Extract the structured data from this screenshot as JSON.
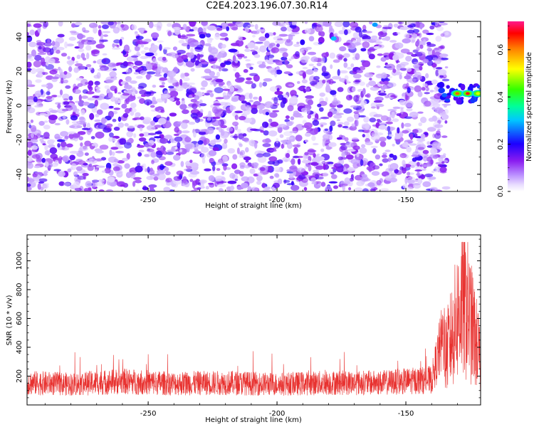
{
  "page_title": "C2E4.2023.196.07.30.R14",
  "chart_data": [
    {
      "type": "heatmap",
      "title": "C2E4.2023.196.07.30.R14",
      "xlabel": "Height of straight line (km)",
      "ylabel": "Frequency (Hz)",
      "xlim": [
        -297,
        -121
      ],
      "ylim": [
        -50,
        49
      ],
      "x_ticks": [
        -250,
        -200,
        -150
      ],
      "x_tick_labels": [
        "-250",
        "-200",
        "-150"
      ],
      "y_ticks": [
        -40,
        -20,
        0,
        20,
        40
      ],
      "y_tick_labels": [
        "-40",
        "-20",
        "0",
        "20",
        "40"
      ],
      "colorbar": {
        "label": "Normalized spectral amplitude",
        "range": [
          0,
          0.72
        ],
        "ticks": [
          0.0,
          0.2,
          0.4,
          0.6
        ],
        "tick_labels": [
          "0.0",
          "0.2",
          "0.4",
          "0.6"
        ],
        "colors": [
          "#ffffff",
          "#d7c2ff",
          "#8a1cf0",
          "#1c00ff",
          "#00e6ff",
          "#00ff40",
          "#ffff00",
          "#ff7f00",
          "#ff0000",
          "#ff1a8c"
        ]
      },
      "background_noise_level": 0.15,
      "features": [
        {
          "x": -130,
          "y": 7,
          "value": 0.62
        },
        {
          "x": -126,
          "y": 7,
          "value": 0.68
        },
        {
          "x": -122,
          "y": 7,
          "value": 0.5
        },
        {
          "x": -135,
          "y": 6,
          "value": 0.25
        },
        {
          "x": -178,
          "y": 39,
          "value": 0.3
        },
        {
          "x": -162,
          "y": 47,
          "value": 0.28
        }
      ]
    },
    {
      "type": "line",
      "xlabel": "Height of straight line (km)",
      "ylabel": "SNR (10 * v/v)",
      "xlim": [
        -297,
        -121
      ],
      "ylim": [
        0,
        1180
      ],
      "x_ticks": [
        -250,
        -200,
        -150
      ],
      "x_tick_labels": [
        "-250",
        "-200",
        "-150"
      ],
      "y_ticks": [
        200,
        400,
        600,
        800,
        1000
      ],
      "y_tick_labels": [
        "200",
        "400",
        "600",
        "800",
        "1000"
      ],
      "color": "#e8312f",
      "baseline_range": [
        60,
        270
      ],
      "peak_region": {
        "x_start": -135,
        "x_end": -121,
        "max": 1130
      },
      "x": [
        -297,
        -280,
        -260,
        -240,
        -220,
        -200,
        -180,
        -160,
        -140,
        -135,
        -132,
        -130,
        -128,
        -126,
        -124,
        -122,
        -121
      ],
      "y": [
        150,
        140,
        160,
        145,
        150,
        140,
        150,
        150,
        170,
        500,
        750,
        950,
        1120,
        1000,
        800,
        600,
        400
      ]
    }
  ]
}
